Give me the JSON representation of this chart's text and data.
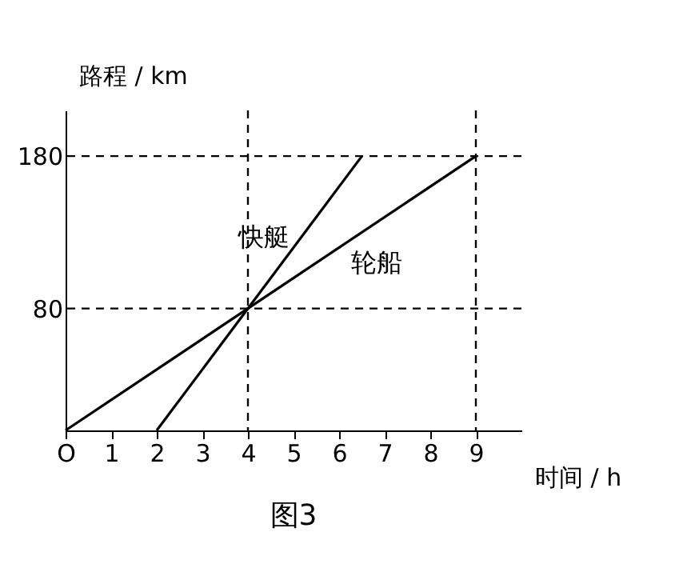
{
  "chart_data": {
    "type": "line",
    "xlabel": "时间 / h",
    "ylabel": "路程 / km",
    "annotations": [
      "图3"
    ],
    "xlim": [
      0,
      10
    ],
    "ylim": [
      0,
      210
    ],
    "xticks": [
      {
        "value": 0,
        "label": "O"
      },
      1,
      2,
      3,
      4,
      5,
      6,
      7,
      8,
      9
    ],
    "yticks": [
      80,
      180
    ],
    "grid": false,
    "legend": false,
    "series": [
      {
        "name": "快艇",
        "color": "#000000",
        "x": [
          2,
          6.5
        ],
        "values": [
          0,
          180
        ]
      },
      {
        "name": "轮船",
        "color": "#000000",
        "x": [
          0,
          9
        ],
        "values": [
          0,
          180
        ]
      }
    ],
    "ref_lines": [
      {
        "axis": "y",
        "value": 80,
        "line_style": "dashed"
      },
      {
        "axis": "y",
        "value": 180,
        "line_style": "dashed"
      },
      {
        "axis": "x",
        "value": 4,
        "line_style": "dashed"
      },
      {
        "axis": "x",
        "value": 9,
        "line_style": "dashed"
      }
    ]
  }
}
